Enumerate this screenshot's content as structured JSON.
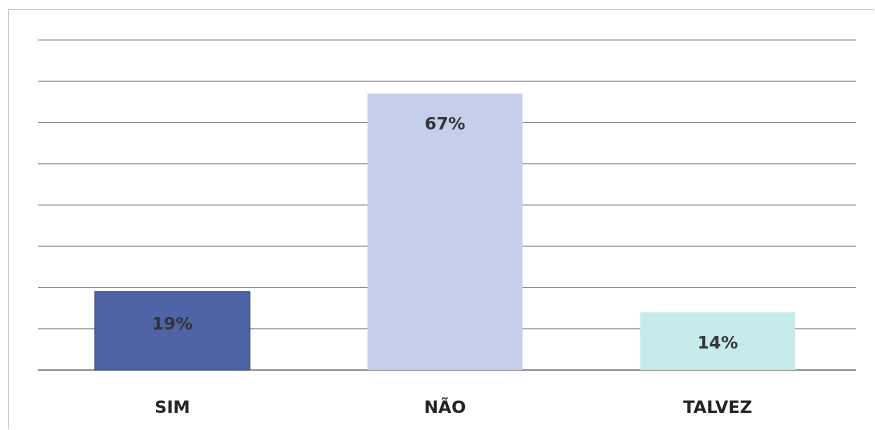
{
  "chart_data": {
    "type": "bar",
    "categories": [
      "SIM",
      "NÃO",
      "TALVEZ"
    ],
    "values": [
      19,
      67,
      14
    ],
    "value_labels": [
      "19%",
      "67%",
      "14%"
    ],
    "colors": [
      "#4f64a6",
      "#c5ceeb",
      "#c6ebeb"
    ],
    "ylim": [
      0,
      80
    ],
    "grid": true,
    "title": "",
    "xlabel": "",
    "ylabel": ""
  }
}
